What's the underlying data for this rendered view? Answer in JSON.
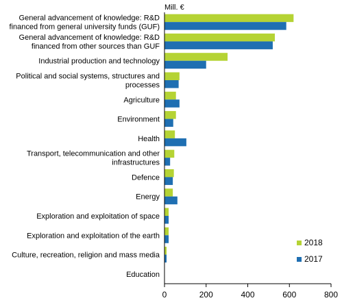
{
  "chart_data": {
    "type": "bar",
    "orientation": "horizontal",
    "unit_label": "Mill. €",
    "title": "",
    "xlabel": "",
    "ylabel": "",
    "xlim": [
      0,
      800
    ],
    "x_ticks": [
      0,
      200,
      400,
      600,
      800
    ],
    "grid": false,
    "legend_position": "bottom-right",
    "categories": [
      [
        "General advancement of knowledge: R&D",
        "financed from general university funds (GUF)"
      ],
      [
        "General advancement of knowledge: R&D",
        "financed from other sources than GUF"
      ],
      [
        "Industrial production and technology"
      ],
      [
        "Political and social systems, structures and",
        "processes"
      ],
      [
        "Agriculture"
      ],
      [
        "Environment"
      ],
      [
        "Health"
      ],
      [
        "Transport, telecommunication and other",
        "infrastructures"
      ],
      [
        "Defence"
      ],
      [
        "Energy"
      ],
      [
        "Exploration and exploitation of space"
      ],
      [
        "Exploration and exploitation of the earth"
      ],
      [
        "Culture, recreation, religion and mass media"
      ],
      [
        "Education"
      ]
    ],
    "series": [
      {
        "name": "2018",
        "color": "#b5d334",
        "values": [
          620,
          530,
          303,
          72,
          55,
          55,
          50,
          47,
          45,
          40,
          20,
          20,
          10,
          1
        ]
      },
      {
        "name": "2017",
        "color": "#1f6fb2",
        "values": [
          585,
          520,
          200,
          68,
          72,
          42,
          105,
          27,
          40,
          62,
          20,
          20,
          10,
          1
        ]
      }
    ]
  }
}
